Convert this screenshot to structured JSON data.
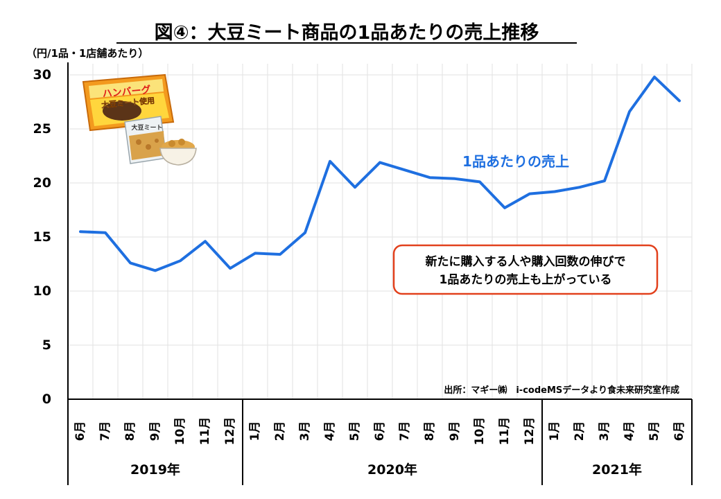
{
  "chart_data": {
    "type": "line",
    "title": "図④：大豆ミート商品の1品あたりの売上推移",
    "ylabel": "（円/1品・1店舗あたり）",
    "ylim": [
      0,
      30
    ],
    "yticks": [
      0,
      5,
      10,
      15,
      20,
      25,
      30
    ],
    "grid": true,
    "categories": [
      "6月",
      "7月",
      "8月",
      "9月",
      "10月",
      "11月",
      "12月",
      "1月",
      "2月",
      "3月",
      "4月",
      "5月",
      "6月",
      "7月",
      "8月",
      "9月",
      "10月",
      "11月",
      "12月",
      "1月",
      "2月",
      "3月",
      "4月",
      "5月",
      "6月"
    ],
    "years": [
      {
        "label": "2019年",
        "count": 7
      },
      {
        "label": "2020年",
        "count": 12
      },
      {
        "label": "2021年",
        "count": 6
      }
    ],
    "series": [
      {
        "name": "1品あたりの売上",
        "color": "#1e6fe0",
        "values": [
          15.5,
          15.4,
          12.6,
          11.9,
          12.8,
          14.6,
          12.1,
          13.5,
          13.4,
          15.4,
          22.0,
          19.6,
          21.9,
          21.2,
          20.5,
          20.4,
          20.1,
          17.7,
          19.0,
          19.2,
          19.6,
          20.2,
          26.6,
          29.8,
          27.6
        ]
      }
    ],
    "annotation": {
      "line1": "新たに購入する人や購入回数の伸びで",
      "line2": "1品あたりの売上も上がっている",
      "border_color": "#e2401c"
    },
    "source": "出所：マギー㈱　i-codeMSデータより食未来研究室作成"
  },
  "illustration": {
    "package_label": "ハンバーグ",
    "package_sublabel": "大豆ミート使用",
    "bag_label": "大豆ミート"
  }
}
